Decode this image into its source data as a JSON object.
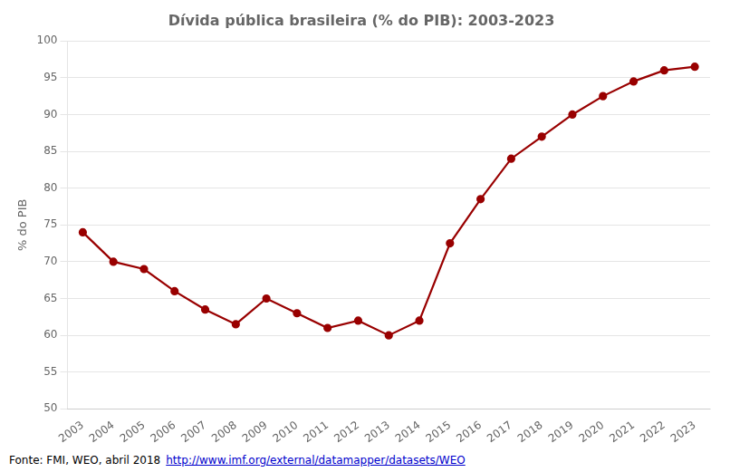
{
  "chart_data": {
    "type": "line",
    "title": "Dívida pública brasileira (% do PIB): 2003-2023",
    "categories": [
      "2003",
      "2004",
      "2005",
      "2006",
      "2007",
      "2008",
      "2009",
      "2010",
      "2011",
      "2012",
      "2013",
      "2014",
      "2015",
      "2016",
      "2017",
      "2018",
      "2019",
      "2020",
      "2021",
      "2022",
      "2023"
    ],
    "values": [
      74.0,
      70.0,
      69.0,
      66.0,
      63.5,
      61.5,
      65.0,
      63.0,
      61.0,
      62.0,
      60.0,
      62.0,
      72.5,
      78.5,
      84.0,
      87.0,
      90.0,
      92.5,
      94.5,
      96.0,
      96.5
    ],
    "ylabel": "% do PIB",
    "ylim": [
      50,
      100
    ],
    "yticks": [
      50,
      55,
      60,
      65,
      70,
      75,
      80,
      85,
      90,
      95,
      100
    ],
    "color": "#990000",
    "marker": "circle",
    "grid": "y",
    "annotations": [
      {
        "text": "Fonte: FMI, WEO, abril 2018",
        "color": "#000000"
      },
      {
        "text": "http://www.imf.org/external/datamapper/datasets/WEO",
        "color": "#0000cc"
      }
    ]
  }
}
